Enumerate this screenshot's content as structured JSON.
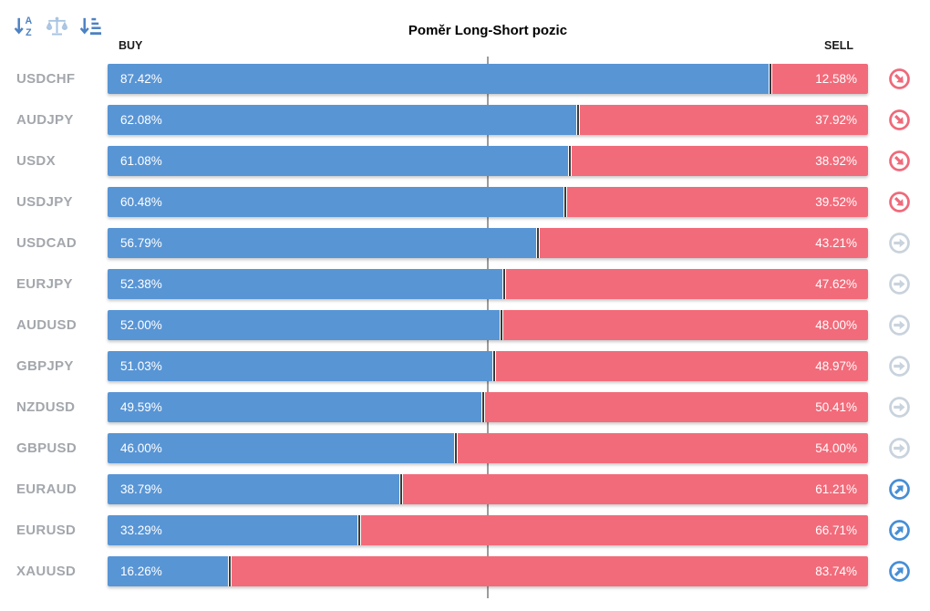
{
  "title": "Poměr Long-Short pozic",
  "column_headers": {
    "buy": "BUY",
    "sell": "SELL"
  },
  "toolbar": {
    "sort_alpha_icon": "sort-alphabetical-descending",
    "balance_icon": "balance-scale",
    "sort_amount_icon": "sort-by-amount-descending"
  },
  "colors": {
    "buy_bar": "#5895d5",
    "sell_bar": "#f26b7a",
    "bar_divider": "#3b3b3b",
    "center_line": "#9c9c9c",
    "pair_label": "#a3a7ac",
    "trend_down": "#ef6a7b",
    "trend_neutral": "#c9d3dd",
    "trend_up": "#478fd6",
    "toolbar_icon": "#4d82c3",
    "toolbar_icon_light": "#a9c4e2"
  },
  "chart_data": {
    "type": "bar",
    "orientation": "horizontal-stacked",
    "title": "Poměr Long-Short pozic",
    "categories": [
      "USDCHF",
      "AUDJPY",
      "USDX",
      "USDJPY",
      "USDCAD",
      "EURJPY",
      "AUDUSD",
      "GBPJPY",
      "NZDUSD",
      "GBPUSD",
      "EURAUD",
      "EURUSD",
      "XAUUSD"
    ],
    "series": [
      {
        "name": "BUY",
        "color": "#5895d5",
        "values": [
          87.42,
          62.08,
          61.08,
          60.48,
          56.79,
          52.38,
          52.0,
          51.03,
          49.59,
          46.0,
          38.79,
          33.29,
          16.26
        ]
      },
      {
        "name": "SELL",
        "color": "#f26b7a",
        "values": [
          12.58,
          37.92,
          38.92,
          39.52,
          43.21,
          47.62,
          48.0,
          48.97,
          50.41,
          54.0,
          61.21,
          66.71,
          83.74
        ]
      }
    ],
    "xlim": [
      0,
      100
    ],
    "midline_at": 50,
    "grid": false,
    "legend_position": "top (BUY left, SELL right)",
    "row_trend_annotations": [
      "down",
      "down",
      "down",
      "down",
      "neutral",
      "neutral",
      "neutral",
      "neutral",
      "neutral",
      "neutral",
      "up",
      "up",
      "up"
    ]
  },
  "rows": [
    {
      "pair": "USDCHF",
      "buy_pct": 87.42,
      "buy_label": "87.42%",
      "sell_pct": 12.58,
      "sell_label": "12.58%",
      "trend": "down"
    },
    {
      "pair": "AUDJPY",
      "buy_pct": 62.08,
      "buy_label": "62.08%",
      "sell_pct": 37.92,
      "sell_label": "37.92%",
      "trend": "down"
    },
    {
      "pair": "USDX",
      "buy_pct": 61.08,
      "buy_label": "61.08%",
      "sell_pct": 38.92,
      "sell_label": "38.92%",
      "trend": "down"
    },
    {
      "pair": "USDJPY",
      "buy_pct": 60.48,
      "buy_label": "60.48%",
      "sell_pct": 39.52,
      "sell_label": "39.52%",
      "trend": "down"
    },
    {
      "pair": "USDCAD",
      "buy_pct": 56.79,
      "buy_label": "56.79%",
      "sell_pct": 43.21,
      "sell_label": "43.21%",
      "trend": "neutral"
    },
    {
      "pair": "EURJPY",
      "buy_pct": 52.38,
      "buy_label": "52.38%",
      "sell_pct": 47.62,
      "sell_label": "47.62%",
      "trend": "neutral"
    },
    {
      "pair": "AUDUSD",
      "buy_pct": 52.0,
      "buy_label": "52.00%",
      "sell_pct": 48.0,
      "sell_label": "48.00%",
      "trend": "neutral"
    },
    {
      "pair": "GBPJPY",
      "buy_pct": 51.03,
      "buy_label": "51.03%",
      "sell_pct": 48.97,
      "sell_label": "48.97%",
      "trend": "neutral"
    },
    {
      "pair": "NZDUSD",
      "buy_pct": 49.59,
      "buy_label": "49.59%",
      "sell_pct": 50.41,
      "sell_label": "50.41%",
      "trend": "neutral"
    },
    {
      "pair": "GBPUSD",
      "buy_pct": 46.0,
      "buy_label": "46.00%",
      "sell_pct": 54.0,
      "sell_label": "54.00%",
      "trend": "neutral"
    },
    {
      "pair": "EURAUD",
      "buy_pct": 38.79,
      "buy_label": "38.79%",
      "sell_pct": 61.21,
      "sell_label": "61.21%",
      "trend": "up"
    },
    {
      "pair": "EURUSD",
      "buy_pct": 33.29,
      "buy_label": "33.29%",
      "sell_pct": 66.71,
      "sell_label": "66.71%",
      "trend": "up"
    },
    {
      "pair": "XAUUSD",
      "buy_pct": 16.26,
      "buy_label": "16.26%",
      "sell_pct": 83.74,
      "sell_label": "83.74%",
      "trend": "up"
    }
  ]
}
